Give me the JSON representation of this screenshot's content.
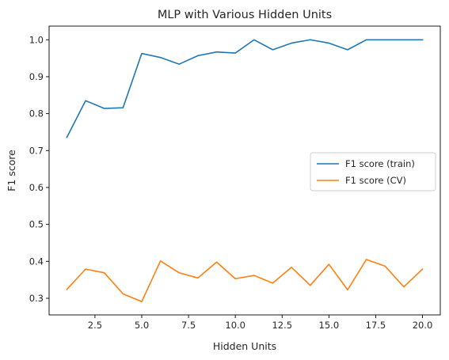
{
  "chart_data": {
    "type": "line",
    "title": "MLP with Various Hidden Units",
    "xlabel": "Hidden Units",
    "ylabel": "F1 score",
    "xlim": [
      0.05,
      20.95
    ],
    "ylim": [
      0.255,
      1.037
    ],
    "xticks": [
      2.5,
      5.0,
      7.5,
      10.0,
      12.5,
      15.0,
      17.5,
      20.0
    ],
    "yticks": [
      0.3,
      0.4,
      0.5,
      0.6,
      0.7,
      0.8,
      0.9,
      1.0
    ],
    "grid": false,
    "legend_position": "center-right",
    "x": [
      1,
      2,
      3,
      4,
      5,
      6,
      7,
      8,
      9,
      10,
      11,
      12,
      13,
      14,
      15,
      16,
      17,
      18,
      19,
      20
    ],
    "series": [
      {
        "name": "F1 score (train)",
        "color": "#1f77b4",
        "values": [
          0.736,
          0.835,
          0.814,
          0.816,
          0.963,
          0.952,
          0.934,
          0.957,
          0.967,
          0.964,
          1.0,
          0.973,
          0.991,
          1.0,
          0.991,
          0.973,
          1.0,
          1.0,
          1.0,
          1.0
        ]
      },
      {
        "name": "F1 score (CV)",
        "color": "#ff7f0e",
        "values": [
          0.324,
          0.379,
          0.369,
          0.312,
          0.291,
          0.401,
          0.369,
          0.355,
          0.398,
          0.353,
          0.362,
          0.341,
          0.384,
          0.335,
          0.392,
          0.323,
          0.405,
          0.387,
          0.331,
          0.379
        ]
      }
    ]
  }
}
